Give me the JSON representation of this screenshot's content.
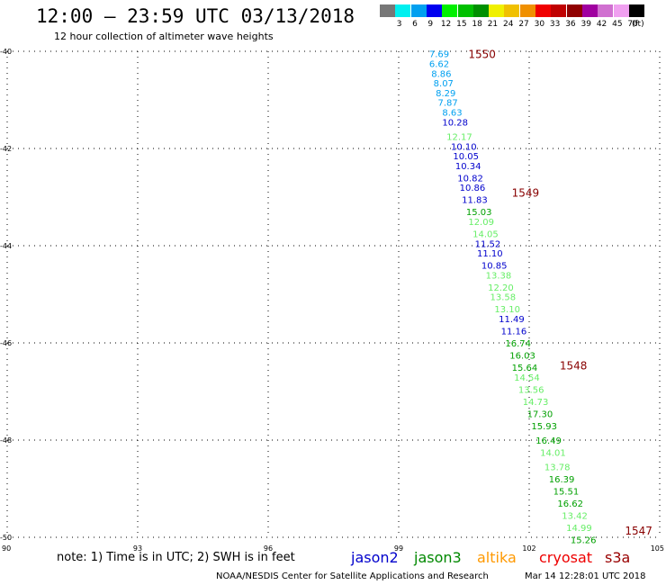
{
  "header": {
    "title": "12:00 – 23:59 UTC 03/13/2018",
    "subtitle": "12 hour collection of altimeter wave heights"
  },
  "colorbar": {
    "unit": "(ft)",
    "levels": [
      {
        "label": "3",
        "color": "#777777"
      },
      {
        "label": "6",
        "color": "#00f0f0"
      },
      {
        "label": "9",
        "color": "#00a0f0"
      },
      {
        "label": "12",
        "color": "#0000f0"
      },
      {
        "label": "15",
        "color": "#00f000"
      },
      {
        "label": "18",
        "color": "#00c000"
      },
      {
        "label": "21",
        "color": "#009000"
      },
      {
        "label": "24",
        "color": "#f0f000"
      },
      {
        "label": "27",
        "color": "#f0c000"
      },
      {
        "label": "30",
        "color": "#f09000"
      },
      {
        "label": "33",
        "color": "#f00000"
      },
      {
        "label": "36",
        "color": "#c00000"
      },
      {
        "label": "39",
        "color": "#900000"
      },
      {
        "label": "42",
        "color": "#a000a0"
      },
      {
        "label": "45",
        "color": "#d070d0"
      },
      {
        "label": "70",
        "color": "#f0a0f0"
      },
      {
        "label": "",
        "color": "#000000"
      }
    ]
  },
  "notes": {
    "note": "note: 1) Time is in UTC; 2) SWH is in feet",
    "footer_left": "NOAA/NESDIS Center for Satellite Applications and Research",
    "footer_right": "Mar 14 12:28:01 UTC 2018"
  },
  "satellites": [
    {
      "name": "jason2",
      "color": "#0000cc"
    },
    {
      "name": "jason3",
      "color": "#008800"
    },
    {
      "name": "altika",
      "color": "#ff9900"
    },
    {
      "name": "cryosat",
      "color": "#ee0000"
    },
    {
      "name": "s3a",
      "color": "#990000"
    }
  ],
  "chart_data": {
    "type": "scatter",
    "title": "12:00 – 23:59 UTC 03/13/2018",
    "subtitle": "12 hour collection of altimeter wave heights",
    "xlim": [
      90,
      105
    ],
    "ylim": [
      -50,
      -40
    ],
    "x_ticks": [
      90,
      93,
      96,
      99,
      102,
      105
    ],
    "y_ticks": [
      -40,
      -42,
      -44,
      -46,
      -48,
      -50
    ],
    "grid": true,
    "time_labels": [
      {
        "label": "1550",
        "x": 100.6,
        "y": -40.05
      },
      {
        "label": "1549",
        "x": 101.6,
        "y": -42.9
      },
      {
        "label": "1548",
        "x": 102.7,
        "y": -46.45
      },
      {
        "label": "1547",
        "x": 104.2,
        "y": -49.85
      }
    ],
    "points": [
      {
        "v": "7.69",
        "x": 99.7,
        "y": -40.05,
        "color": "#00a0f0"
      },
      {
        "v": "6.62",
        "x": 99.7,
        "y": -40.25,
        "color": "#00a0f0"
      },
      {
        "v": "8.86",
        "x": 99.75,
        "y": -40.45,
        "color": "#00a0f0"
      },
      {
        "v": "8.07",
        "x": 99.8,
        "y": -40.65,
        "color": "#00a0f0"
      },
      {
        "v": "8.29",
        "x": 99.85,
        "y": -40.85,
        "color": "#00a0f0"
      },
      {
        "v": "7.87",
        "x": 99.9,
        "y": -41.05,
        "color": "#00a0f0"
      },
      {
        "v": "8.63",
        "x": 100.0,
        "y": -41.25,
        "color": "#00a0f0"
      },
      {
        "v": "10.28",
        "x": 100.0,
        "y": -41.45,
        "color": "#0000cc"
      },
      {
        "v": "12.17",
        "x": 100.1,
        "y": -41.75,
        "color": "#66ee66"
      },
      {
        "v": "10.10",
        "x": 100.2,
        "y": -41.95,
        "color": "#0000cc"
      },
      {
        "v": "10.05",
        "x": 100.25,
        "y": -42.15,
        "color": "#0000cc"
      },
      {
        "v": "10.34",
        "x": 100.3,
        "y": -42.35,
        "color": "#0000cc"
      },
      {
        "v": "10.82",
        "x": 100.35,
        "y": -42.6,
        "color": "#0000cc"
      },
      {
        "v": "10.86",
        "x": 100.4,
        "y": -42.8,
        "color": "#0000cc"
      },
      {
        "v": "11.83",
        "x": 100.45,
        "y": -43.05,
        "color": "#0000cc"
      },
      {
        "v": "15.03",
        "x": 100.55,
        "y": -43.3,
        "color": "#00a000"
      },
      {
        "v": "12.09",
        "x": 100.6,
        "y": -43.5,
        "color": "#66ee66"
      },
      {
        "v": "14.05",
        "x": 100.7,
        "y": -43.75,
        "color": "#66ee66"
      },
      {
        "v": "11.52",
        "x": 100.75,
        "y": -43.95,
        "color": "#0000cc"
      },
      {
        "v": "11.10",
        "x": 100.8,
        "y": -44.15,
        "color": "#0000cc"
      },
      {
        "v": "10.85",
        "x": 100.9,
        "y": -44.4,
        "color": "#0000cc"
      },
      {
        "v": "13.38",
        "x": 101.0,
        "y": -44.6,
        "color": "#66ee66"
      },
      {
        "v": "12.20",
        "x": 101.05,
        "y": -44.85,
        "color": "#66ee66"
      },
      {
        "v": "13.58",
        "x": 101.1,
        "y": -45.05,
        "color": "#66ee66"
      },
      {
        "v": "13.10",
        "x": 101.2,
        "y": -45.3,
        "color": "#66ee66"
      },
      {
        "v": "11.49",
        "x": 101.3,
        "y": -45.5,
        "color": "#0000cc"
      },
      {
        "v": "11.16",
        "x": 101.35,
        "y": -45.75,
        "color": "#0000cc"
      },
      {
        "v": "16.74",
        "x": 101.45,
        "y": -46.0,
        "color": "#00a000"
      },
      {
        "v": "16.03",
        "x": 101.55,
        "y": -46.25,
        "color": "#00a000"
      },
      {
        "v": "15.64",
        "x": 101.6,
        "y": -46.5,
        "color": "#00a000"
      },
      {
        "v": "14.54",
        "x": 101.65,
        "y": -46.7,
        "color": "#66ee66"
      },
      {
        "v": "13.56",
        "x": 101.75,
        "y": -46.95,
        "color": "#66ee66"
      },
      {
        "v": "14.73",
        "x": 101.85,
        "y": -47.2,
        "color": "#66ee66"
      },
      {
        "v": "17.30",
        "x": 101.95,
        "y": -47.45,
        "color": "#00a000"
      },
      {
        "v": "15.93",
        "x": 102.05,
        "y": -47.7,
        "color": "#00a000"
      },
      {
        "v": "16.49",
        "x": 102.15,
        "y": -48.0,
        "color": "#00a000"
      },
      {
        "v": "14.01",
        "x": 102.25,
        "y": -48.25,
        "color": "#66ee66"
      },
      {
        "v": "13.78",
        "x": 102.35,
        "y": -48.55,
        "color": "#66ee66"
      },
      {
        "v": "16.39",
        "x": 102.45,
        "y": -48.8,
        "color": "#00a000"
      },
      {
        "v": "15.51",
        "x": 102.55,
        "y": -49.05,
        "color": "#00a000"
      },
      {
        "v": "16.62",
        "x": 102.65,
        "y": -49.3,
        "color": "#00a000"
      },
      {
        "v": "13.42",
        "x": 102.75,
        "y": -49.55,
        "color": "#66ee66"
      },
      {
        "v": "14.99",
        "x": 102.85,
        "y": -49.8,
        "color": "#66ee66"
      },
      {
        "v": "15.26",
        "x": 102.95,
        "y": -50.05,
        "color": "#00a000"
      }
    ]
  }
}
